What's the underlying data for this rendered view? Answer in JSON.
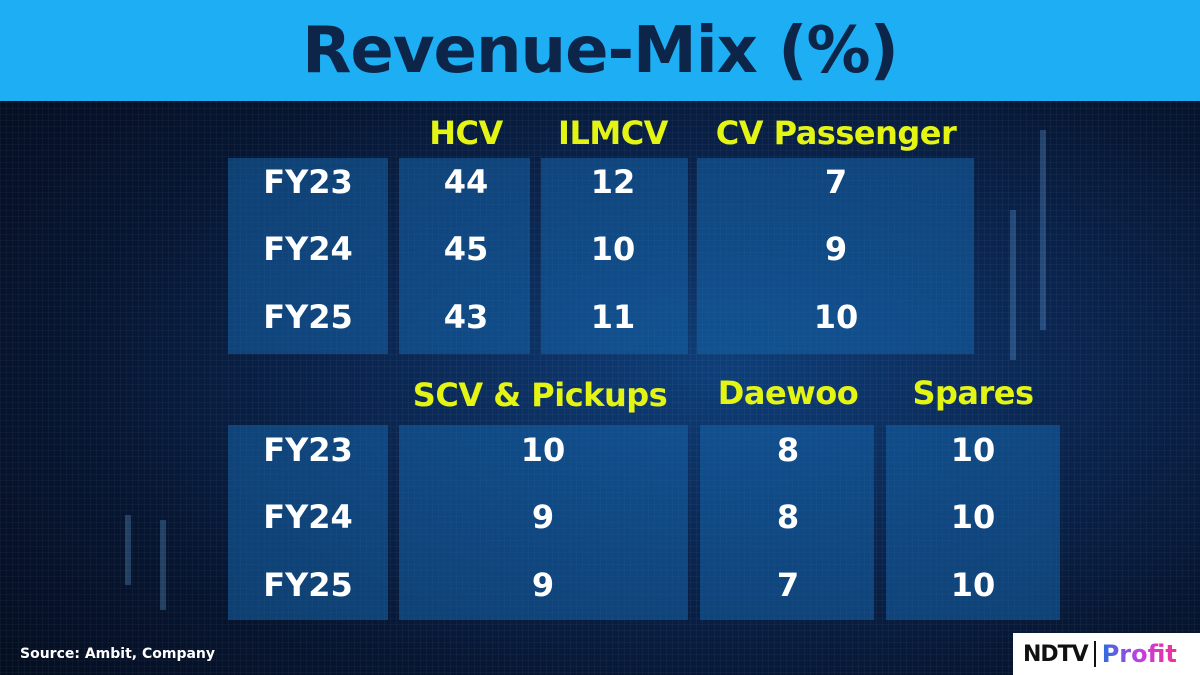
{
  "title": "Revenue-Mix (%)",
  "top_table": {
    "headers": [
      "HCV",
      "ILMCV",
      "CV Passenger"
    ],
    "rows": [
      {
        "year": "FY23",
        "values": [
          "44",
          "12",
          "7"
        ]
      },
      {
        "year": "FY24",
        "values": [
          "45",
          "10",
          "9"
        ]
      },
      {
        "year": "FY25",
        "values": [
          "43",
          "11",
          "10"
        ]
      }
    ]
  },
  "bottom_table": {
    "headers": [
      "SCV & Pickups",
      "Daewoo",
      "Spares"
    ],
    "rows": [
      {
        "year": "FY23",
        "values": [
          "10",
          "8",
          "10"
        ]
      },
      {
        "year": "FY24",
        "values": [
          "9",
          "8",
          "10"
        ]
      },
      {
        "year": "FY25",
        "values": [
          "9",
          "7",
          "10"
        ]
      }
    ]
  },
  "source": "Source: Ambit, Company",
  "logo": {
    "brand": "NDTV",
    "product": "Profit"
  },
  "colors": {
    "title_bar": "#1eaef3",
    "title_text": "#0c2548",
    "header": "#e4f514",
    "cell_text": "#ffffff"
  }
}
